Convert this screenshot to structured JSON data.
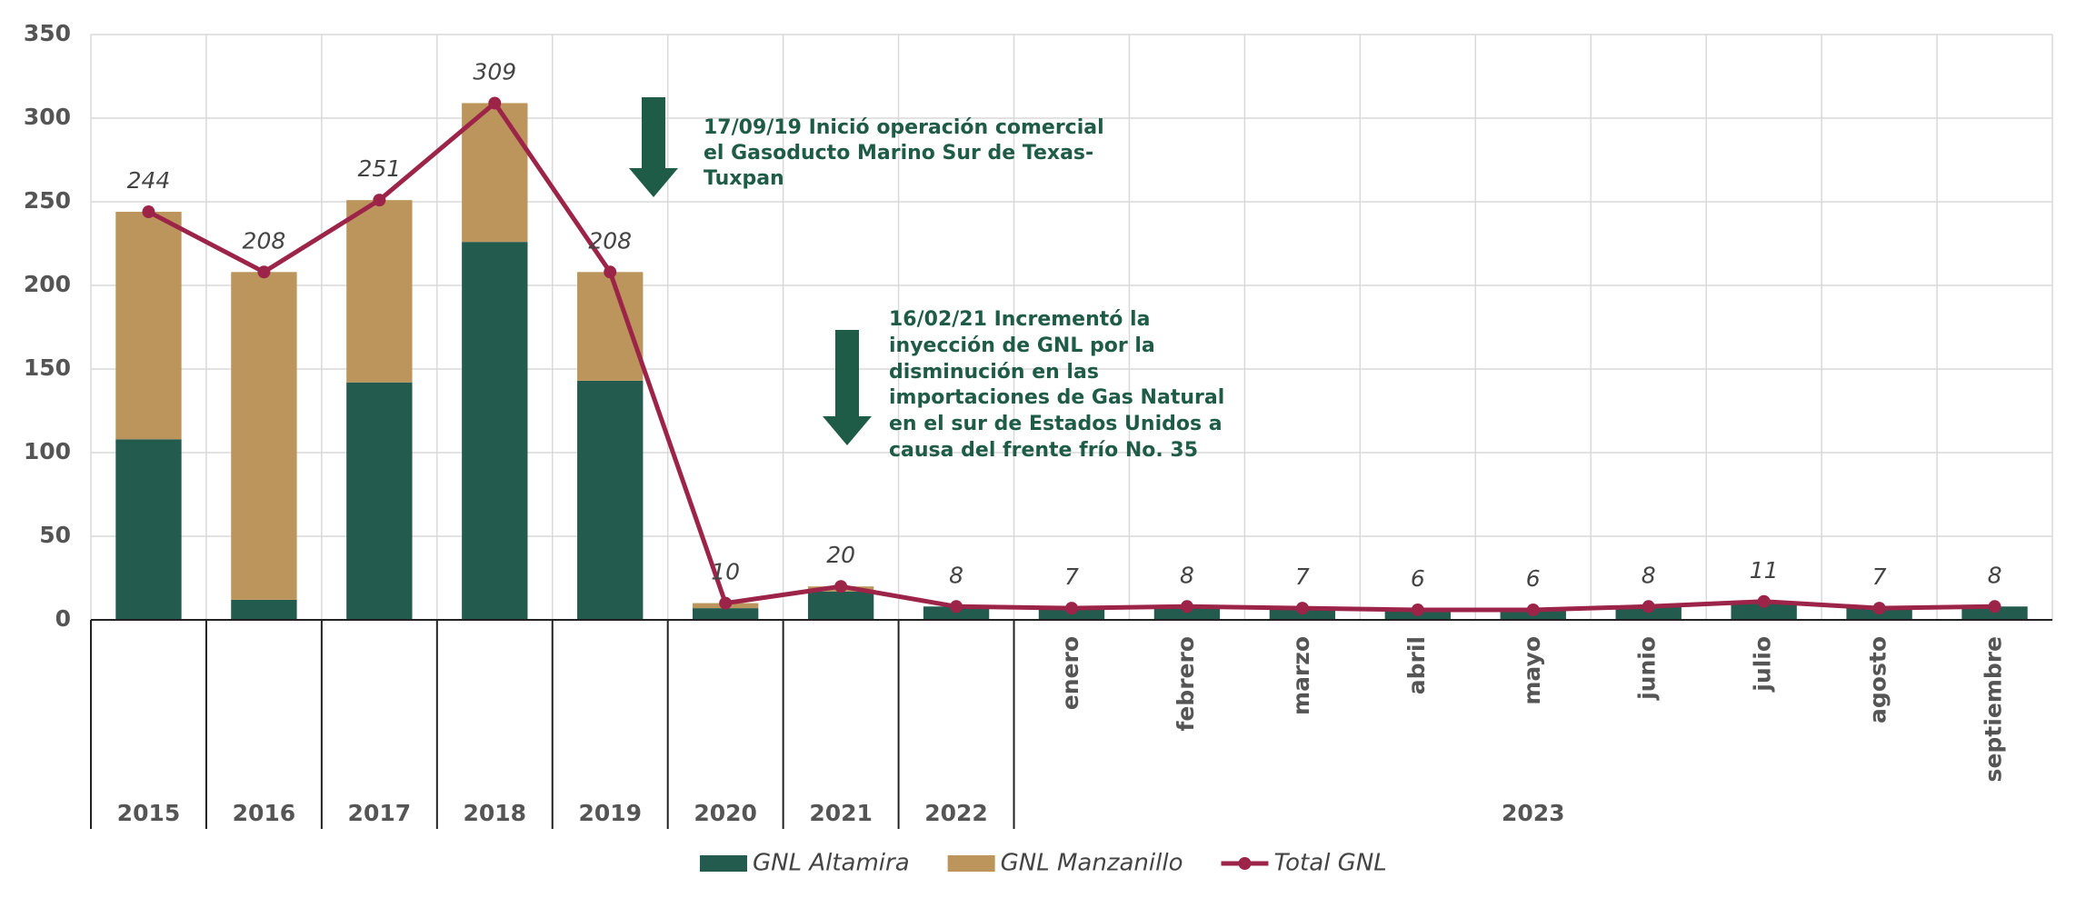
{
  "chart_data": {
    "type": "bar",
    "stacked": true,
    "categories": [
      "2015",
      "2016",
      "2017",
      "2018",
      "2019",
      "2020",
      "2021",
      "2022",
      "enero",
      "febrero",
      "marzo",
      "abril",
      "mayo",
      "junio",
      "julio",
      "agosto",
      "septiembre"
    ],
    "category_group": "2023",
    "series": [
      {
        "name": "GNL Altamira",
        "type": "bar",
        "color": "#235b4e",
        "values": [
          108,
          12,
          142,
          226,
          143,
          7,
          17,
          8,
          7,
          8,
          7,
          6,
          6,
          8,
          11,
          7,
          8
        ]
      },
      {
        "name": "GNL Manzanillo",
        "type": "bar",
        "color": "#bc955c",
        "values": [
          136,
          196,
          109,
          83,
          65,
          3,
          3,
          0,
          0,
          0,
          0,
          0,
          0,
          0,
          0,
          0,
          0
        ]
      },
      {
        "name": "Total GNL",
        "type": "line",
        "color": "#9d2449",
        "values": [
          244,
          208,
          251,
          309,
          208,
          10,
          20,
          8,
          7,
          8,
          7,
          6,
          6,
          8,
          11,
          7,
          8
        ]
      }
    ],
    "ylim": [
      0,
      350
    ],
    "yticks": [
      0,
      50,
      100,
      150,
      200,
      250,
      300,
      350
    ],
    "grid": true,
    "annotations": [
      {
        "lines": [
          "17/09/19 Inició operación comercial",
          "el Gasoducto Marino Sur de Texas-",
          "Tuxpan"
        ]
      },
      {
        "lines": [
          "16/02/21 Incrementó la",
          "inyección de GNL por la",
          "disminución en las",
          "importaciones de Gas Natural",
          "en el sur de Estados Unidos a",
          "causa del frente frío No. 35"
        ]
      }
    ]
  }
}
